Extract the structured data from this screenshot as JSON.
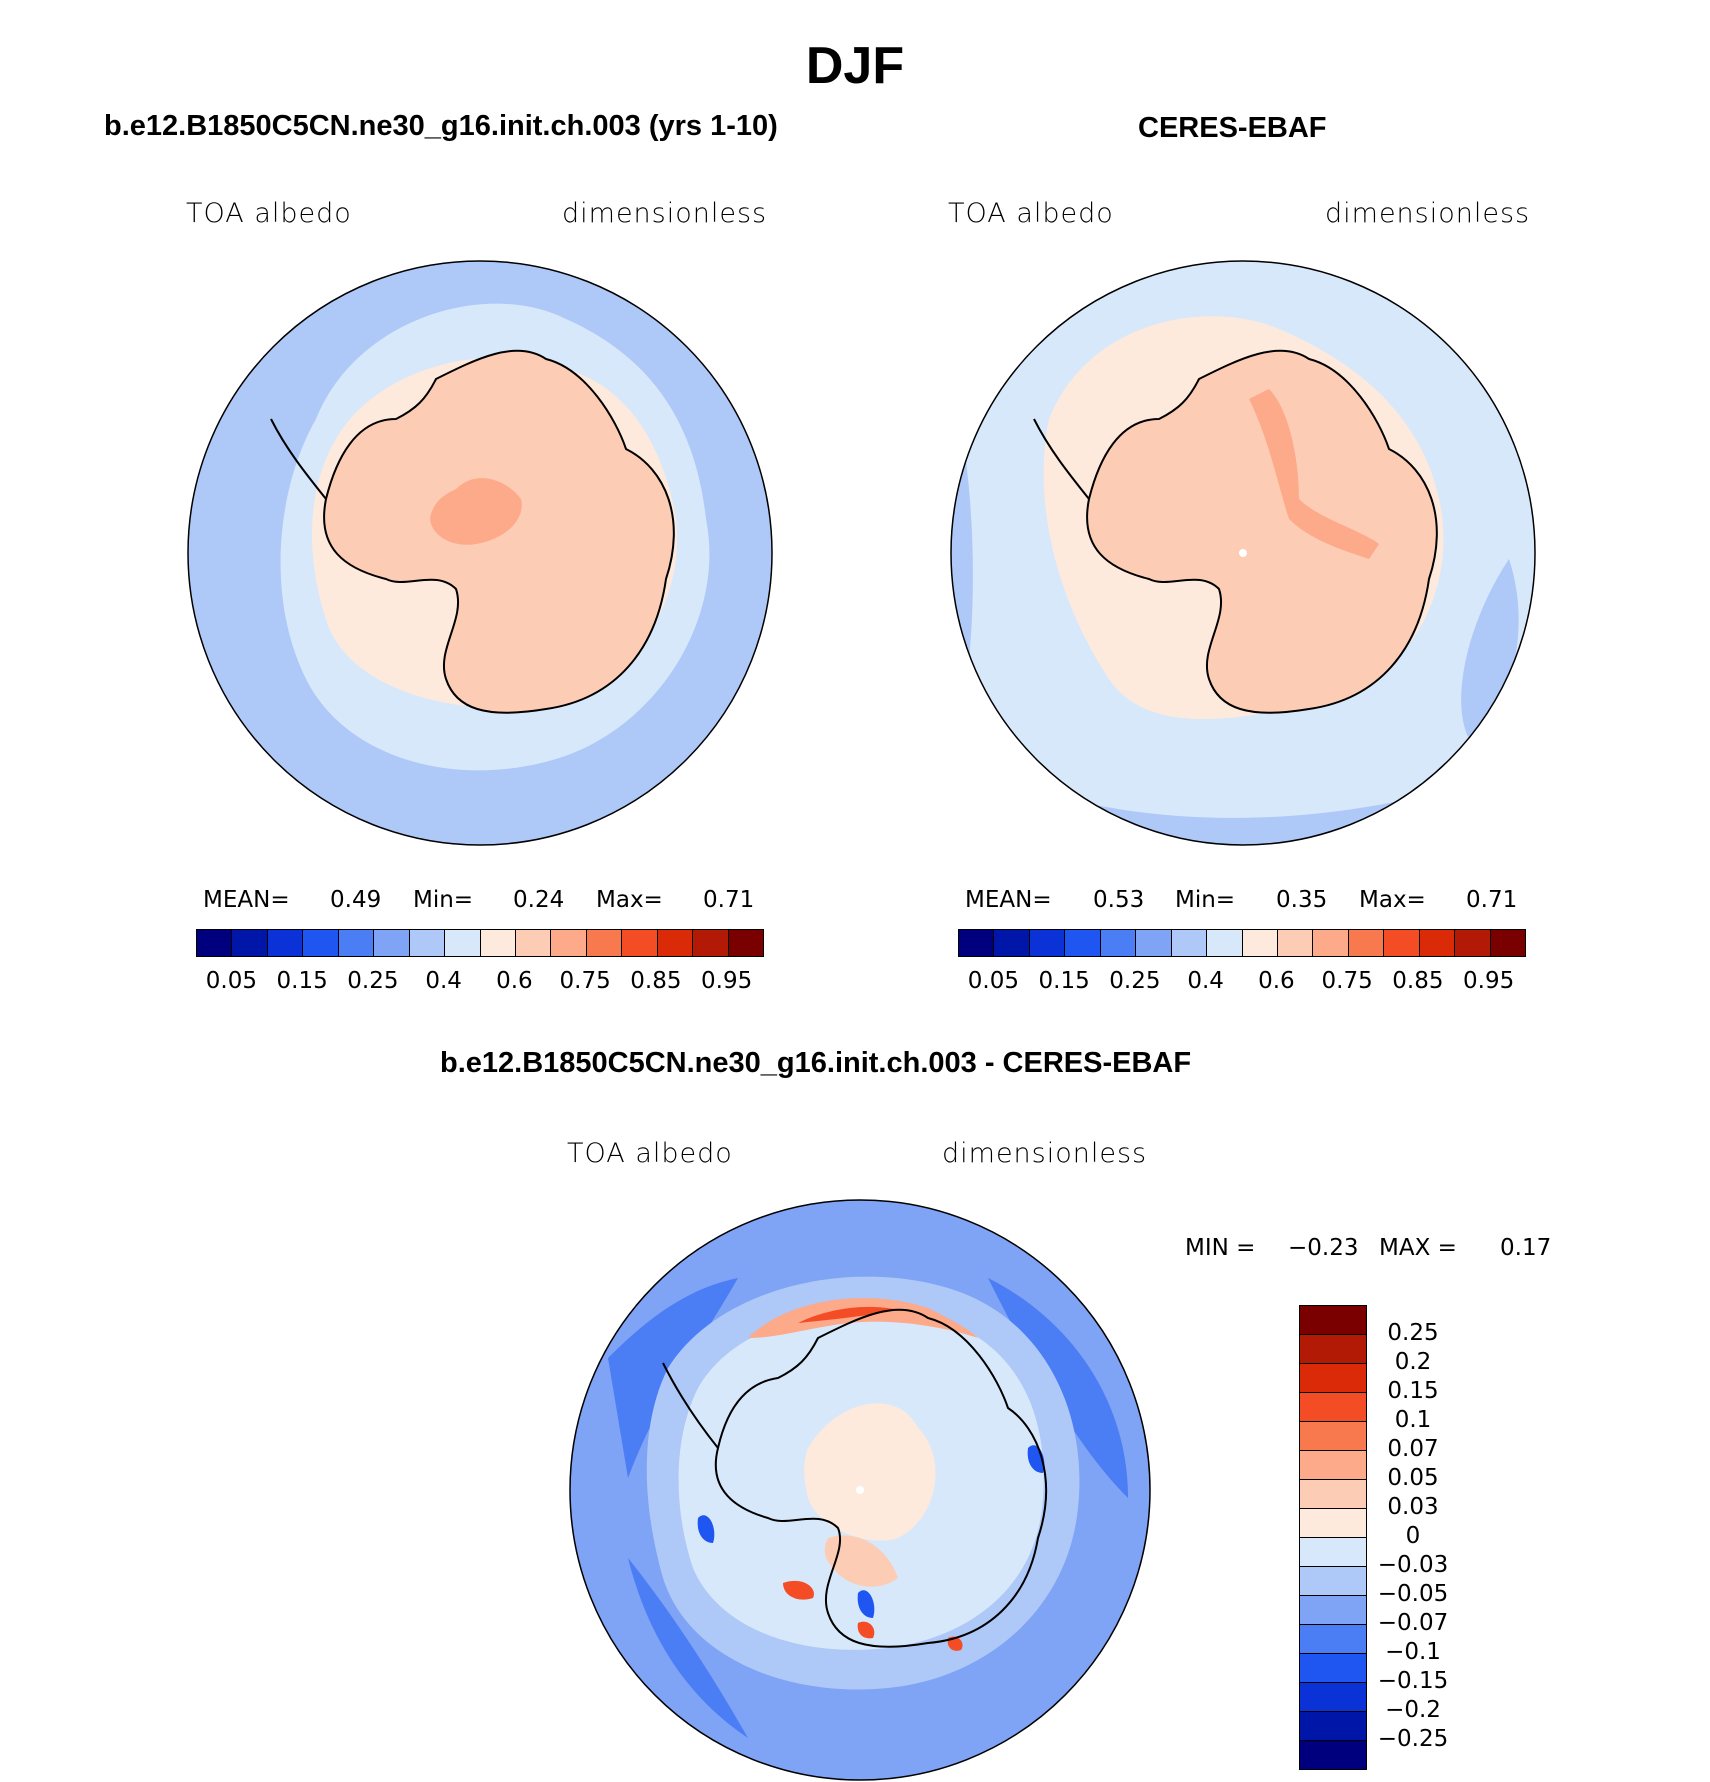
{
  "title": "DJF",
  "panels": {
    "left": {
      "title": "b.e12.B1850C5CN.ne30_g16.init.ch.003 (yrs 1-10)",
      "var_label": "TOA albedo",
      "units": "dimensionless",
      "mean_label": "MEAN=",
      "mean": "0.49",
      "min_label": "Min=",
      "min": "0.24",
      "max_label": "Max=",
      "max": "0.71"
    },
    "right": {
      "title": "CERES-EBAF",
      "var_label": "TOA albedo",
      "units": "dimensionless",
      "mean_label": "MEAN=",
      "mean": "0.53",
      "min_label": "Min=",
      "min": "0.35",
      "max_label": "Max=",
      "max": "0.71"
    },
    "diff": {
      "title": "b.e12.B1850C5CN.ne30_g16.init.ch.003 - CERES-EBAF",
      "var_label": "TOA albedo",
      "units": "dimensionless",
      "min_label": "MIN =",
      "min": "−0.23",
      "max_label": "MAX =",
      "max": "0.17"
    }
  },
  "colorbar_abs": {
    "colors": [
      "#00007f",
      "#0016a8",
      "#0a32d6",
      "#1f55f0",
      "#4b7ef5",
      "#7fa3f5",
      "#aec8f8",
      "#d8e8fb",
      "#feeadd",
      "#fdccb4",
      "#fcaa8a",
      "#f9794f",
      "#f44c25",
      "#db2a07",
      "#b31a05",
      "#7a0000"
    ],
    "labels": [
      "0.05",
      "0.15",
      "0.25",
      "0.4",
      "0.6",
      "0.75",
      "0.85",
      "0.95"
    ]
  },
  "colorbar_diff": {
    "colors": [
      "#7a0000",
      "#b31a05",
      "#db2a07",
      "#f44c25",
      "#f9794f",
      "#fcaa8a",
      "#fdccb4",
      "#feeadd",
      "#d8e8fb",
      "#aec8f8",
      "#7fa3f5",
      "#4b7ef5",
      "#1f55f0",
      "#0a32d6",
      "#0016a8",
      "#00007f"
    ],
    "labels": [
      "0.25",
      "0.2",
      "0.15",
      "0.1",
      "0.07",
      "0.05",
      "0.03",
      "0",
      "−0.03",
      "−0.05",
      "−0.07",
      "−0.1",
      "−0.15",
      "−0.2",
      "−0.25"
    ]
  }
}
